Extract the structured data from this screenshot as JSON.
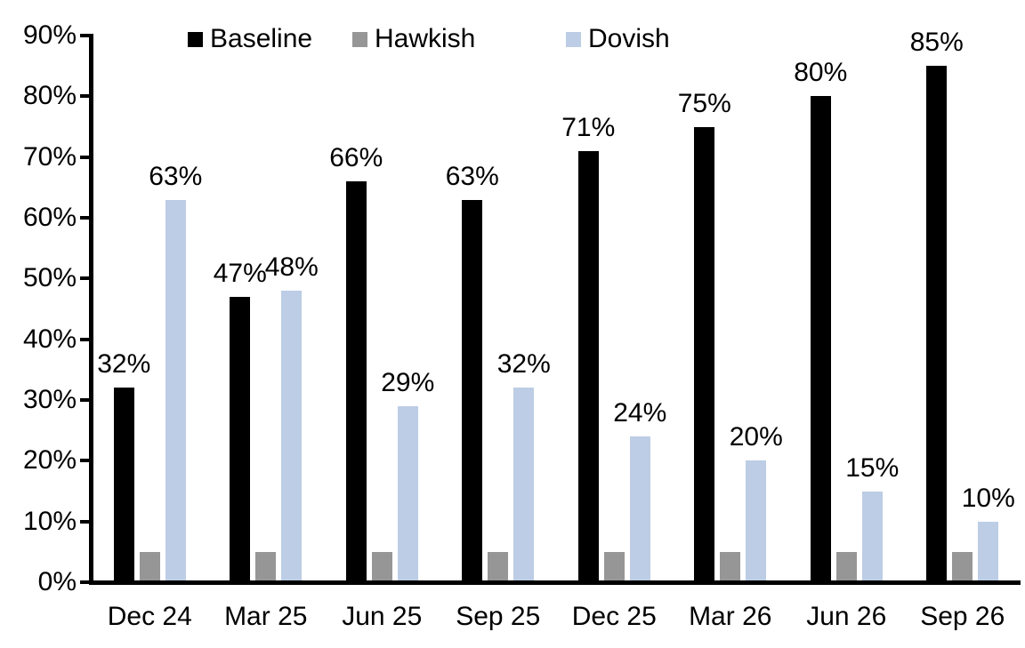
{
  "chart_data": {
    "type": "bar",
    "title": "",
    "categories": [
      "Dec 24",
      "Mar 25",
      "Jun 25",
      "Sep 25",
      "Dec 25",
      "Mar 26",
      "Jun 26",
      "Sep 26"
    ],
    "series": [
      {
        "name": "Baseline",
        "color": "#000000",
        "values": [
          32,
          47,
          66,
          63,
          71,
          75,
          80,
          85
        ],
        "labels": [
          "32%",
          "47%",
          "66%",
          "63%",
          "71%",
          "75%",
          "80%",
          "85%"
        ]
      },
      {
        "name": "Hawkish",
        "color": "#969696",
        "values": [
          5,
          5,
          5,
          5,
          5,
          5,
          5,
          5
        ],
        "labels": [
          "",
          "",
          "",
          "",
          "",
          "",
          "",
          ""
        ]
      },
      {
        "name": "Dovish",
        "color": "#bccde5",
        "values": [
          63,
          48,
          29,
          32,
          24,
          20,
          15,
          10
        ],
        "labels": [
          "63%",
          "48%",
          "29%",
          "32%",
          "24%",
          "20%",
          "15%",
          "10%"
        ]
      }
    ],
    "y_axis": {
      "min": 0,
      "max": 90,
      "tick_step": 10,
      "tick_labels": [
        "0%",
        "10%",
        "20%",
        "30%",
        "40%",
        "50%",
        "60%",
        "70%",
        "80%",
        "90%"
      ]
    },
    "legend_position": "top",
    "grid": false,
    "axis_color": "#000000",
    "background_color": "#ffffff"
  }
}
